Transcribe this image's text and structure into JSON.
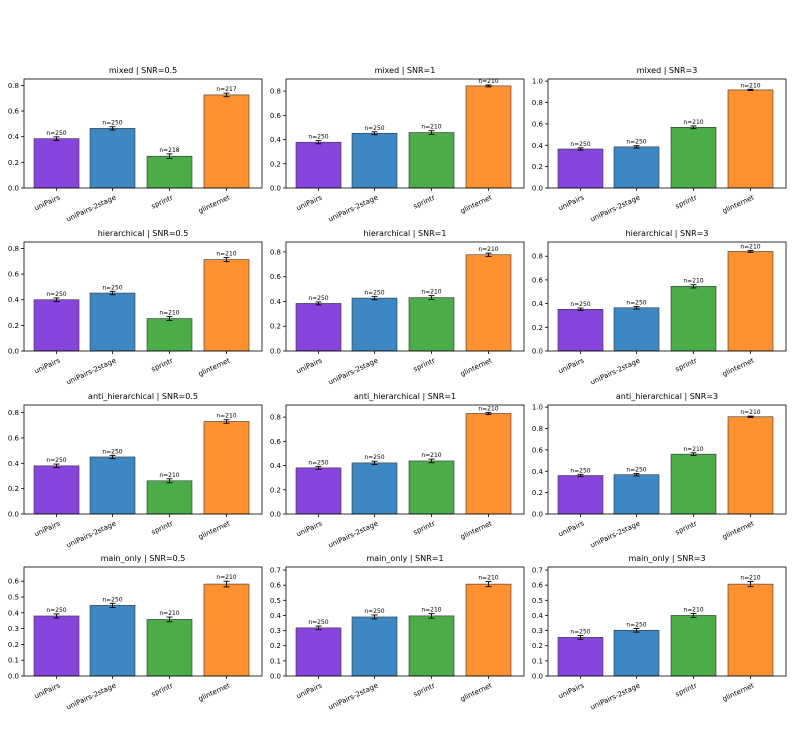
{
  "colors": {
    "uniPairs": "#8845dd",
    "uniPairs-2stage": "#3d88c2",
    "sprintr": "#4aad4a",
    "glinternet": "#ff9130",
    "edge": "#333333",
    "error": "#000000"
  },
  "categories": [
    "uniPairs",
    "uniPairs-2stage",
    "sprintr",
    "glinternet"
  ],
  "chart_data": [
    {
      "type": "bar",
      "title": "mixed | SNR=0.5",
      "ylim": [
        0,
        0.85
      ],
      "yticks": [
        "0.0",
        "0.2",
        "0.4",
        "0.6",
        "0.8"
      ],
      "values": [
        0.385,
        0.465,
        0.248,
        0.726
      ],
      "errors": [
        0.014,
        0.013,
        0.018,
        0.014
      ],
      "labels": [
        "n=250",
        "n=250",
        "n=218",
        "n=217"
      ]
    },
    {
      "type": "bar",
      "title": "mixed | SNR=1",
      "ylim": [
        0,
        0.9
      ],
      "yticks": [
        "0.0",
        "0.2",
        "0.4",
        "0.6",
        "0.8"
      ],
      "values": [
        0.378,
        0.452,
        0.458,
        0.843
      ],
      "errors": [
        0.013,
        0.012,
        0.015,
        0.008
      ],
      "labels": [
        "n=250",
        "n=250",
        "n=210",
        "n=210"
      ]
    },
    {
      "type": "bar",
      "title": "mixed | SNR=3",
      "ylim": [
        0,
        1.02
      ],
      "yticks": [
        "0.0",
        "0.2",
        "0.4",
        "0.6",
        "0.8",
        "1.0"
      ],
      "values": [
        0.365,
        0.385,
        0.568,
        0.918
      ],
      "errors": [
        0.011,
        0.011,
        0.013,
        0.006
      ],
      "labels": [
        "n=250",
        "n=250",
        "n=210",
        "n=210"
      ]
    },
    {
      "type": "bar",
      "title": "hierarchical | SNR=0.5",
      "ylim": [
        0,
        0.85
      ],
      "yticks": [
        "0.0",
        "0.2",
        "0.4",
        "0.6",
        "0.8"
      ],
      "values": [
        0.4,
        0.452,
        0.253,
        0.713
      ],
      "errors": [
        0.014,
        0.013,
        0.015,
        0.016
      ],
      "labels": [
        "n=250",
        "n=250",
        "n=210",
        "n=210"
      ]
    },
    {
      "type": "bar",
      "title": "hierarchical | SNR=1",
      "ylim": [
        0,
        0.88
      ],
      "yticks": [
        "0.0",
        "0.2",
        "0.4",
        "0.6",
        "0.8"
      ],
      "values": [
        0.384,
        0.427,
        0.431,
        0.777
      ],
      "errors": [
        0.012,
        0.014,
        0.016,
        0.013
      ],
      "labels": [
        "n=250",
        "n=250",
        "n=210",
        "n=210"
      ]
    },
    {
      "type": "bar",
      "title": "hierarchical | SNR=3",
      "ylim": [
        0,
        0.92
      ],
      "yticks": [
        "0.0",
        "0.2",
        "0.4",
        "0.6",
        "0.8"
      ],
      "values": [
        0.352,
        0.365,
        0.546,
        0.84
      ],
      "errors": [
        0.011,
        0.011,
        0.014,
        0.008
      ],
      "labels": [
        "n=250",
        "n=250",
        "n=210",
        "n=210"
      ]
    },
    {
      "type": "bar",
      "title": "anti_hierarchical | SNR=0.5",
      "ylim": [
        0,
        0.86
      ],
      "yticks": [
        "0.0",
        "0.2",
        "0.4",
        "0.6",
        "0.8"
      ],
      "values": [
        0.38,
        0.45,
        0.262,
        0.73
      ],
      "errors": [
        0.014,
        0.013,
        0.016,
        0.014
      ],
      "labels": [
        "n=250",
        "n=250",
        "n=210",
        "n=210"
      ]
    },
    {
      "type": "bar",
      "title": "anti_hierarchical | SNR=1",
      "ylim": [
        0,
        0.9
      ],
      "yticks": [
        "0.0",
        "0.2",
        "0.4",
        "0.6",
        "0.8"
      ],
      "values": [
        0.381,
        0.422,
        0.438,
        0.83
      ],
      "errors": [
        0.012,
        0.014,
        0.015,
        0.009
      ],
      "labels": [
        "n=250",
        "n=250",
        "n=210",
        "n=210"
      ]
    },
    {
      "type": "bar",
      "title": "anti_hierarchical | SNR=3",
      "ylim": [
        0,
        1.02
      ],
      "yticks": [
        "0.0",
        "0.2",
        "0.4",
        "0.6",
        "0.8",
        "1.0"
      ],
      "values": [
        0.36,
        0.368,
        0.56,
        0.91
      ],
      "errors": [
        0.011,
        0.011,
        0.013,
        0.006
      ],
      "labels": [
        "n=250",
        "n=250",
        "n=210",
        "n=210"
      ]
    },
    {
      "type": "bar",
      "title": "main_only | SNR=0.5",
      "ylim": [
        0,
        0.69
      ],
      "yticks": [
        "0.0",
        "0.1",
        "0.2",
        "0.3",
        "0.4",
        "0.5",
        "0.6"
      ],
      "values": [
        0.38,
        0.447,
        0.358,
        0.582
      ],
      "errors": [
        0.013,
        0.013,
        0.015,
        0.018
      ],
      "labels": [
        "n=250",
        "n=250",
        "n=210",
        "n=210"
      ]
    },
    {
      "type": "bar",
      "title": "main_only | SNR=1",
      "ylim": [
        0,
        0.72
      ],
      "yticks": [
        "0.0",
        "0.1",
        "0.2",
        "0.3",
        "0.4",
        "0.5",
        "0.6",
        "0.7"
      ],
      "values": [
        0.318,
        0.39,
        0.397,
        0.607
      ],
      "errors": [
        0.012,
        0.013,
        0.015,
        0.017
      ],
      "labels": [
        "n=250",
        "n=250",
        "n=210",
        "n=210"
      ]
    },
    {
      "type": "bar",
      "title": "main_only | SNR=3",
      "ylim": [
        0,
        0.72
      ],
      "yticks": [
        "0.0",
        "0.1",
        "0.2",
        "0.3",
        "0.4",
        "0.5",
        "0.6",
        "0.7"
      ],
      "values": [
        0.255,
        0.302,
        0.4,
        0.607
      ],
      "errors": [
        0.012,
        0.012,
        0.013,
        0.017
      ],
      "labels": [
        "n=250",
        "n=250",
        "n=210",
        "n=210"
      ]
    }
  ]
}
